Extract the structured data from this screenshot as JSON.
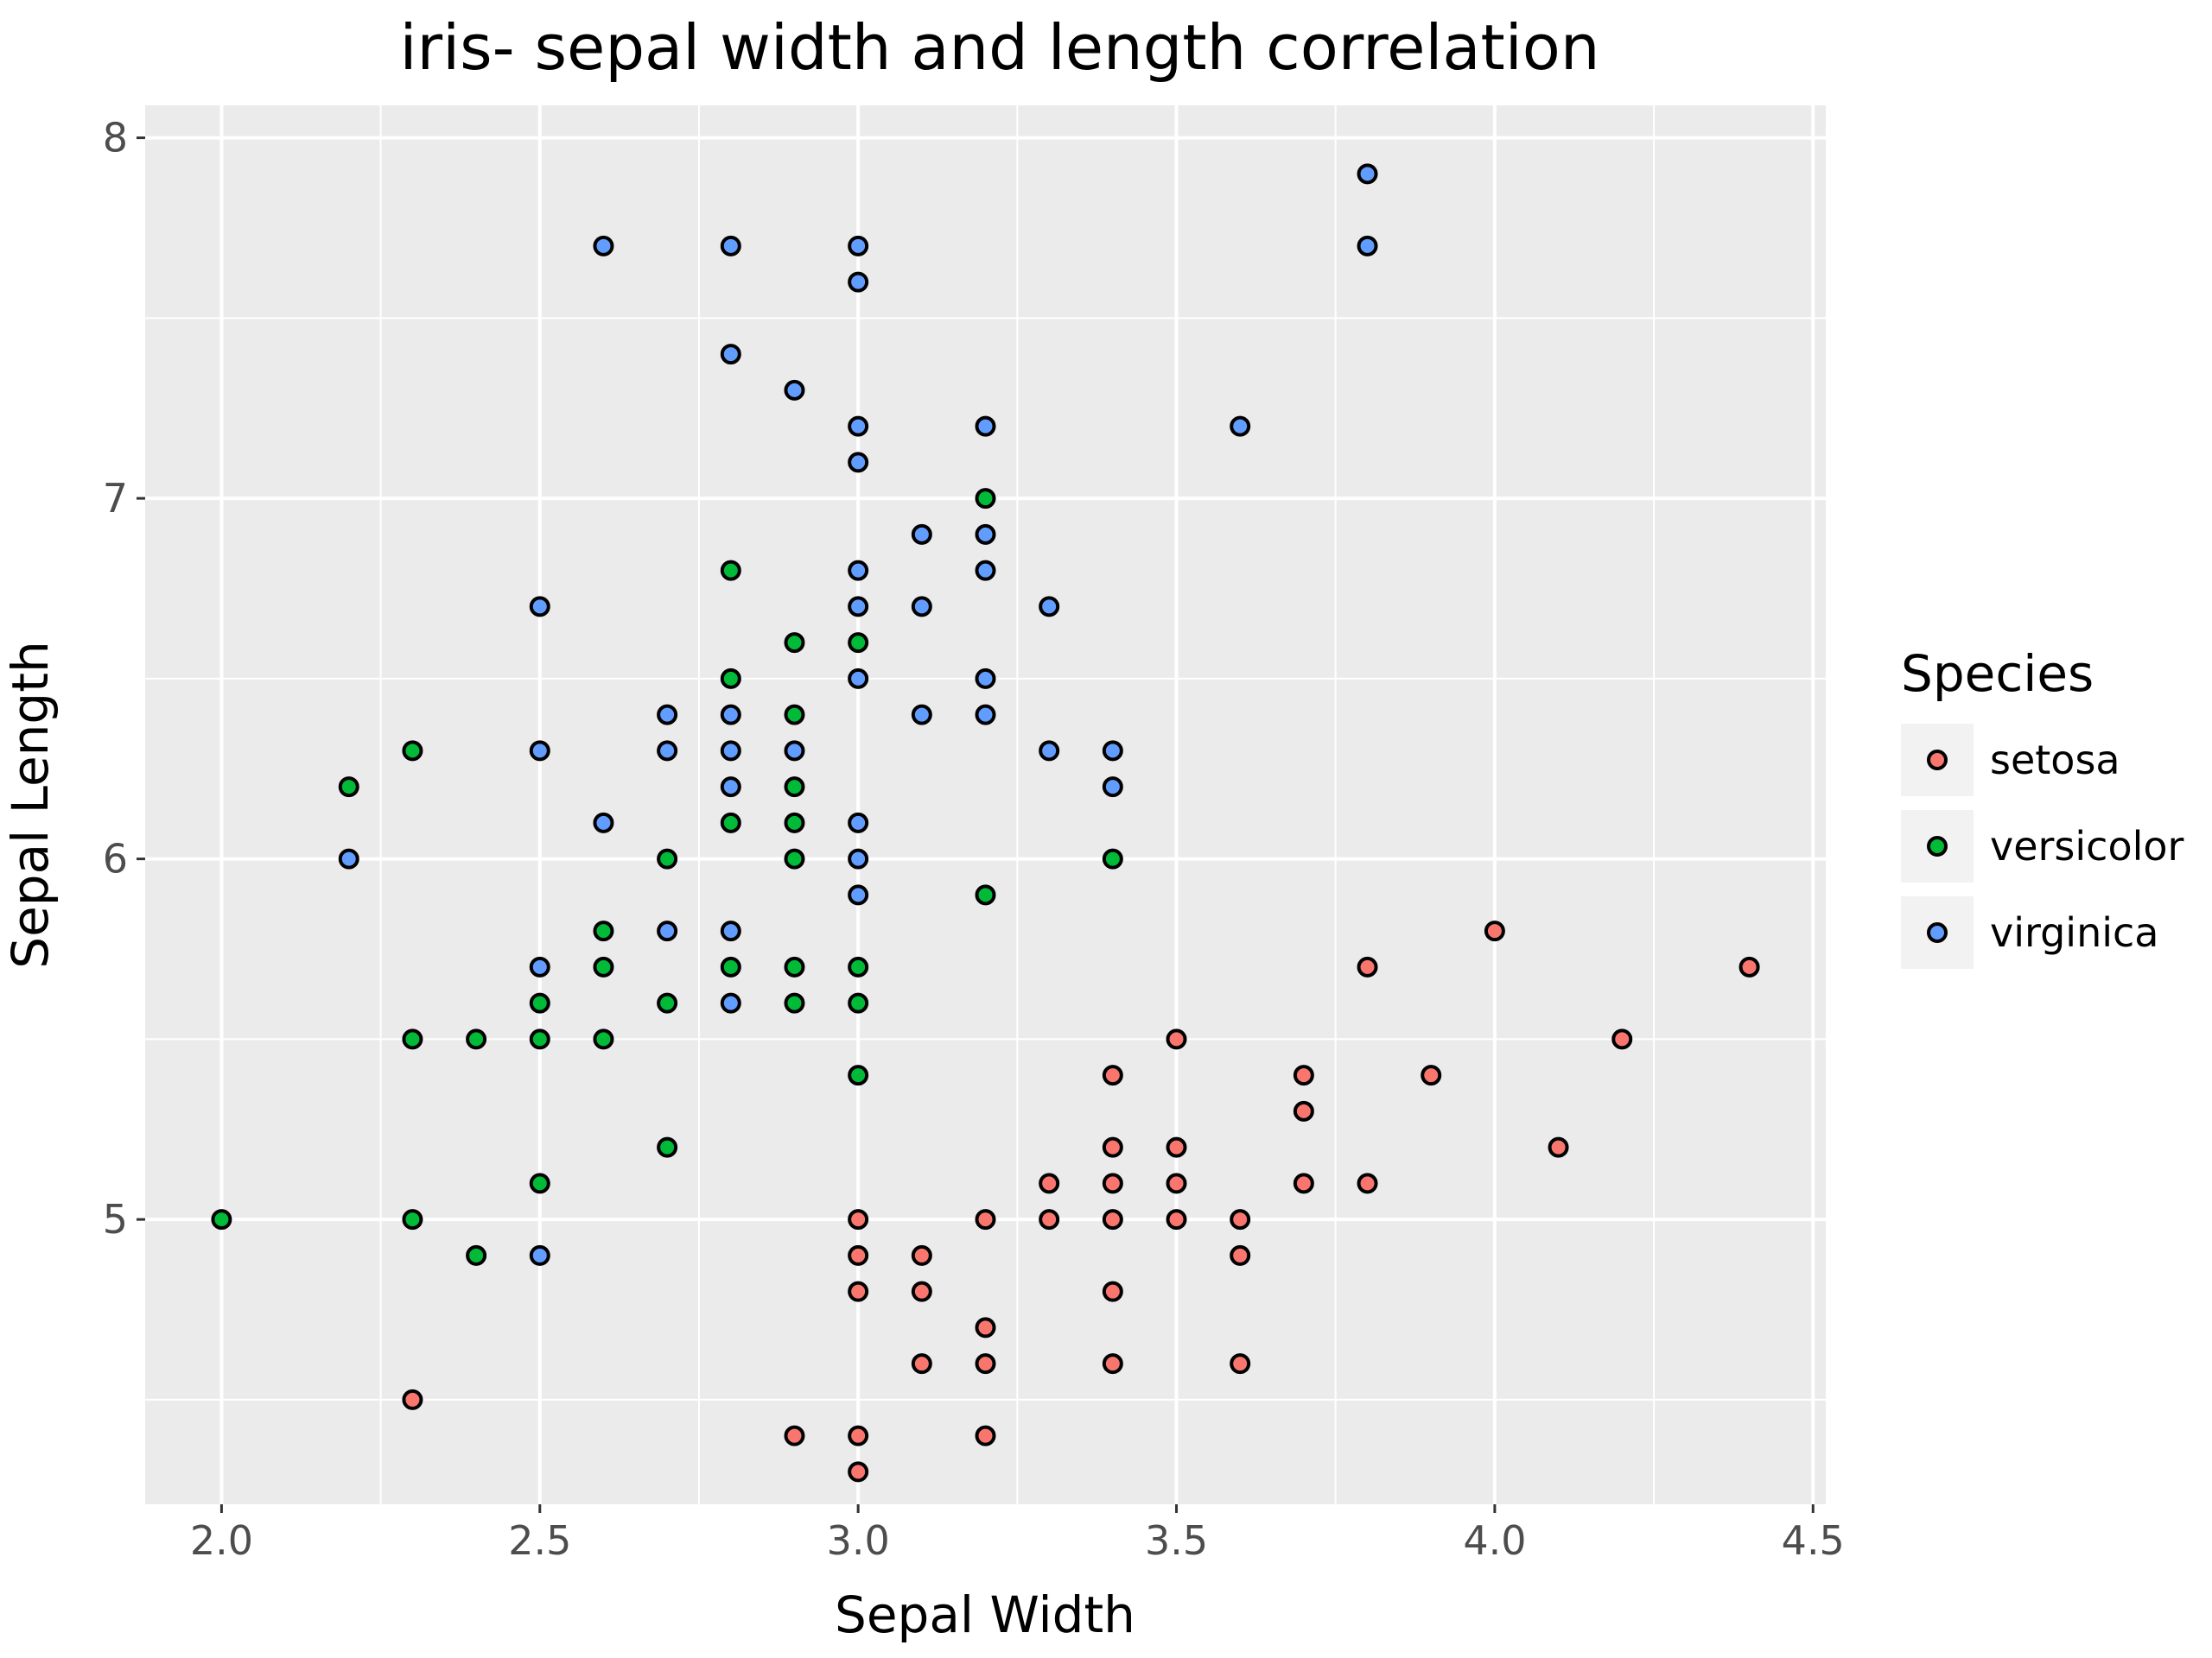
{
  "chart_data": {
    "type": "scatter",
    "title": "iris- sepal width and length correlation",
    "xlabel": "Sepal Width",
    "ylabel": "Sepal Length",
    "xlim": [
      1.88,
      4.52
    ],
    "ylim": [
      4.21,
      8.09
    ],
    "x_ticks": [
      "2.0",
      "2.5",
      "3.0",
      "3.5",
      "4.0",
      "4.5"
    ],
    "y_ticks": [
      "5",
      "6",
      "7",
      "8"
    ],
    "grid": true,
    "legend": {
      "title": "Species",
      "position": "right"
    },
    "series": [
      {
        "name": "setosa",
        "color": "#F8766D",
        "points": [
          [
            4.4,
            5.7
          ],
          [
            4.2,
            5.5
          ],
          [
            4.1,
            5.2
          ],
          [
            4.0,
            5.8
          ],
          [
            3.9,
            5.4
          ],
          [
            3.8,
            5.7
          ],
          [
            3.8,
            5.1
          ],
          [
            3.7,
            5.4
          ],
          [
            3.7,
            5.3
          ],
          [
            3.7,
            5.1
          ],
          [
            3.6,
            5.0
          ],
          [
            3.6,
            4.9
          ],
          [
            3.6,
            4.6
          ],
          [
            3.5,
            5.5
          ],
          [
            3.5,
            5.2
          ],
          [
            3.5,
            5.1
          ],
          [
            3.5,
            5.0
          ],
          [
            3.4,
            5.4
          ],
          [
            3.4,
            5.2
          ],
          [
            3.4,
            5.1
          ],
          [
            3.4,
            5.0
          ],
          [
            3.4,
            4.8
          ],
          [
            3.4,
            4.6
          ],
          [
            3.3,
            5.1
          ],
          [
            3.3,
            5.0
          ],
          [
            3.2,
            5.0
          ],
          [
            3.2,
            4.7
          ],
          [
            3.2,
            4.6
          ],
          [
            3.2,
            4.4
          ],
          [
            3.1,
            4.9
          ],
          [
            3.1,
            4.8
          ],
          [
            3.1,
            4.6
          ],
          [
            3.0,
            5.0
          ],
          [
            3.0,
            4.9
          ],
          [
            3.0,
            4.8
          ],
          [
            3.0,
            4.4
          ],
          [
            3.0,
            4.3
          ],
          [
            2.9,
            4.4
          ],
          [
            2.3,
            4.5
          ]
        ]
      },
      {
        "name": "versicolor",
        "color": "#00BA38",
        "points": [
          [
            3.4,
            6.0
          ],
          [
            3.2,
            7.0
          ],
          [
            3.2,
            5.9
          ],
          [
            3.0,
            6.6
          ],
          [
            3.0,
            5.7
          ],
          [
            3.0,
            5.6
          ],
          [
            3.0,
            5.4
          ],
          [
            2.9,
            6.6
          ],
          [
            2.9,
            6.4
          ],
          [
            2.9,
            6.2
          ],
          [
            2.9,
            6.1
          ],
          [
            2.9,
            6.0
          ],
          [
            2.9,
            5.7
          ],
          [
            2.9,
            5.6
          ],
          [
            2.8,
            6.8
          ],
          [
            2.8,
            6.5
          ],
          [
            2.8,
            6.1
          ],
          [
            2.8,
            5.7
          ],
          [
            2.7,
            6.0
          ],
          [
            2.7,
            5.6
          ],
          [
            2.7,
            5.2
          ],
          [
            2.6,
            5.8
          ],
          [
            2.6,
            5.7
          ],
          [
            2.6,
            5.5
          ],
          [
            2.5,
            5.6
          ],
          [
            2.5,
            5.5
          ],
          [
            2.5,
            5.1
          ],
          [
            2.4,
            5.5
          ],
          [
            2.4,
            4.9
          ],
          [
            2.3,
            6.3
          ],
          [
            2.3,
            5.5
          ],
          [
            2.3,
            5.0
          ],
          [
            2.2,
            6.2
          ],
          [
            2.0,
            5.0
          ]
        ]
      },
      {
        "name": "virginica",
        "color": "#619CFF",
        "points": [
          [
            3.8,
            7.9
          ],
          [
            3.8,
            7.7
          ],
          [
            3.6,
            7.2
          ],
          [
            3.4,
            6.3
          ],
          [
            3.4,
            6.2
          ],
          [
            3.3,
            6.7
          ],
          [
            3.3,
            6.3
          ],
          [
            3.2,
            7.2
          ],
          [
            3.2,
            6.9
          ],
          [
            3.2,
            6.8
          ],
          [
            3.2,
            6.5
          ],
          [
            3.2,
            6.4
          ],
          [
            3.1,
            6.9
          ],
          [
            3.1,
            6.7
          ],
          [
            3.1,
            6.4
          ],
          [
            3.0,
            7.7
          ],
          [
            3.0,
            7.6
          ],
          [
            3.0,
            7.2
          ],
          [
            3.0,
            7.1
          ],
          [
            3.0,
            6.8
          ],
          [
            3.0,
            6.7
          ],
          [
            3.0,
            6.5
          ],
          [
            3.0,
            6.1
          ],
          [
            3.0,
            6.0
          ],
          [
            3.0,
            5.9
          ],
          [
            2.9,
            7.3
          ],
          [
            2.9,
            6.3
          ],
          [
            2.8,
            7.7
          ],
          [
            2.8,
            7.4
          ],
          [
            2.8,
            6.4
          ],
          [
            2.8,
            6.3
          ],
          [
            2.8,
            6.2
          ],
          [
            2.8,
            5.8
          ],
          [
            2.8,
            5.6
          ],
          [
            2.7,
            6.4
          ],
          [
            2.7,
            6.3
          ],
          [
            2.7,
            5.8
          ],
          [
            2.6,
            7.7
          ],
          [
            2.6,
            6.1
          ],
          [
            2.5,
            6.7
          ],
          [
            2.5,
            6.3
          ],
          [
            2.5,
            5.7
          ],
          [
            2.5,
            4.9
          ],
          [
            2.2,
            6.0
          ]
        ]
      }
    ]
  }
}
